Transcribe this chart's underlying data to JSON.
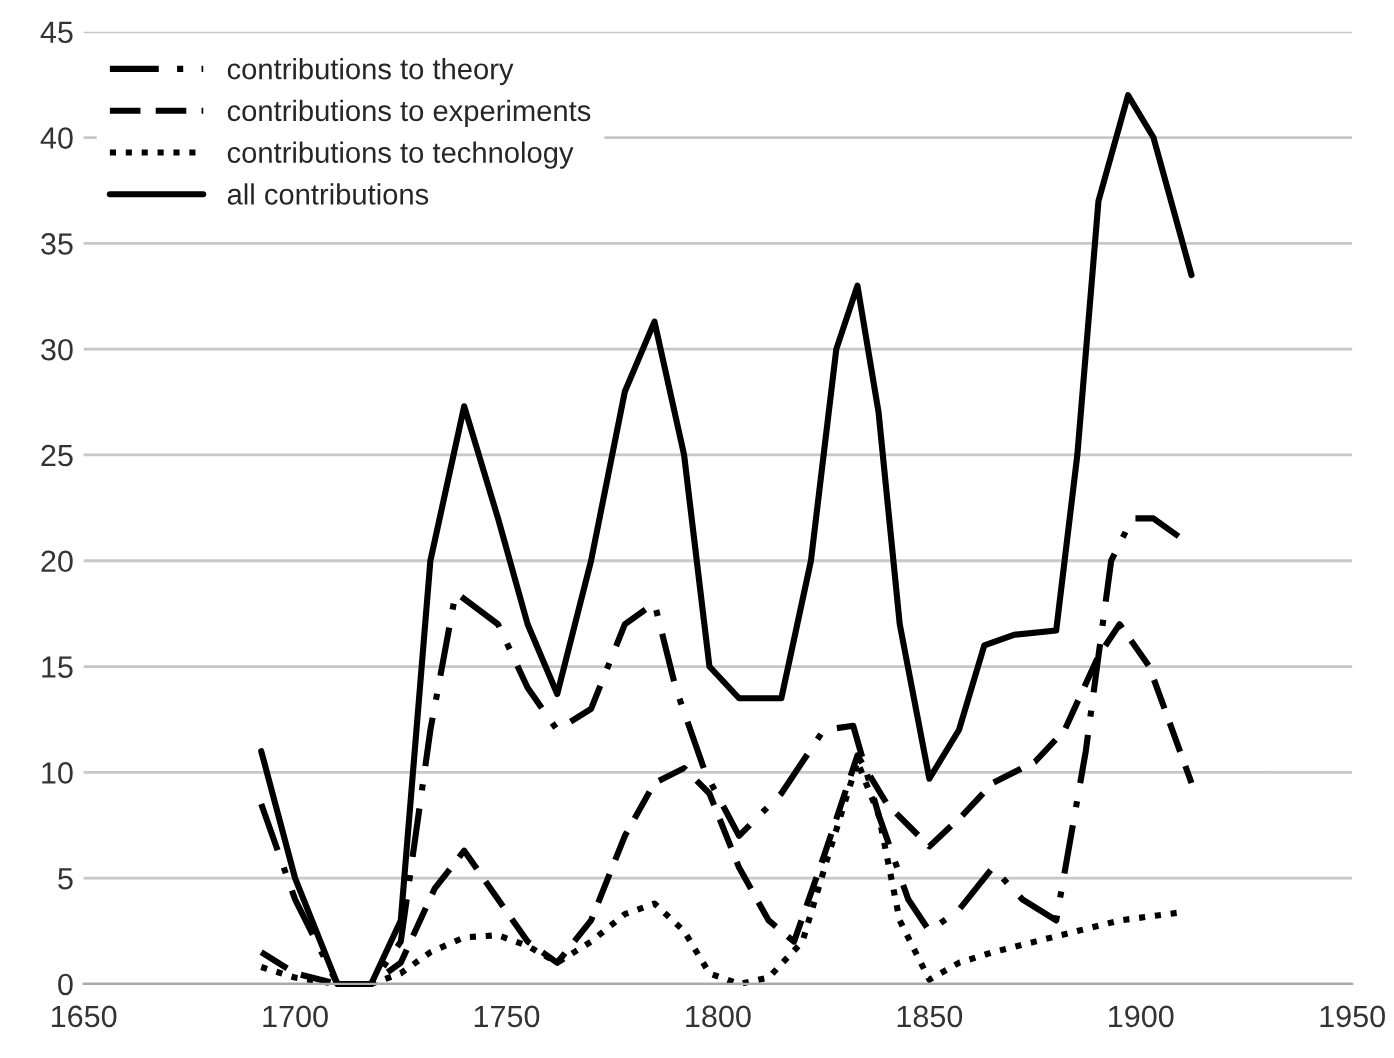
{
  "chart_data": {
    "type": "line",
    "xlim": [
      1650,
      1950
    ],
    "xticks": [
      1650,
      1700,
      1750,
      1800,
      1850,
      1900,
      1950
    ],
    "ylim": [
      0,
      45
    ],
    "yticks": [
      0,
      5,
      10,
      15,
      20,
      25,
      30,
      35,
      40,
      45
    ],
    "grid": "y",
    "legend": "top left",
    "marker": "none",
    "series": [
      {
        "name": "contributions to theory",
        "color": "#000000",
        "line_style": "dashdot",
        "x": [
          1692,
          1700,
          1710,
          1718,
          1725,
          1732,
          1738,
          1748,
          1755,
          1762,
          1770,
          1778,
          1785,
          1790,
          1797,
          1805,
          1815,
          1825,
          1832,
          1838,
          1845,
          1850,
          1857,
          1865,
          1872,
          1880,
          1887,
          1893,
          1898,
          1903,
          1910
        ],
        "values": [
          8.5,
          4,
          0,
          0,
          2,
          12,
          18.5,
          17,
          14,
          12,
          13,
          17,
          18,
          14,
          10,
          7,
          9,
          12,
          12.2,
          8,
          4,
          2.5,
          3.5,
          5.5,
          4,
          3,
          11,
          20,
          22,
          22,
          21
        ]
      },
      {
        "name": "contributions to experiments",
        "color": "#000000",
        "line_style": "dashed",
        "x": [
          1692,
          1700,
          1710,
          1718,
          1725,
          1733,
          1740,
          1748,
          1755,
          1762,
          1770,
          1778,
          1785,
          1792,
          1798,
          1805,
          1812,
          1818,
          1825,
          1833,
          1840,
          1850,
          1858,
          1865,
          1875,
          1882,
          1890,
          1895,
          1902,
          1912
        ],
        "values": [
          1.5,
          0.5,
          0,
          0,
          1,
          4.5,
          6.3,
          4,
          2,
          1,
          3,
          7,
          9.5,
          10.2,
          9,
          5.5,
          3,
          2,
          6,
          10.8,
          8.5,
          6.5,
          8,
          9.5,
          10.5,
          12,
          15.5,
          17,
          15,
          9.5
        ]
      },
      {
        "name": "contributions to technology",
        "color": "#000000",
        "line_style": "dotted",
        "x": [
          1692,
          1700,
          1710,
          1718,
          1725,
          1732,
          1740,
          1748,
          1755,
          1762,
          1770,
          1778,
          1785,
          1792,
          1798,
          1805,
          1812,
          1820,
          1826,
          1833,
          1838,
          1843,
          1850,
          1857,
          1865,
          1875,
          1885,
          1895,
          1910
        ],
        "values": [
          0.8,
          0.3,
          0,
          0,
          0.5,
          1.5,
          2.2,
          2.3,
          1.8,
          1,
          2,
          3.3,
          3.8,
          2.5,
          0.5,
          0,
          0.3,
          2,
          6,
          10.5,
          8,
          3,
          0.2,
          1,
          1.5,
          2,
          2.5,
          3,
          3.4
        ]
      },
      {
        "name": "all contributions",
        "color": "#000000",
        "line_style": "solid",
        "x": [
          1692,
          1700,
          1710,
          1718,
          1725,
          1732,
          1740,
          1748,
          1755,
          1762,
          1770,
          1778,
          1785,
          1792,
          1798,
          1805,
          1815,
          1822,
          1828,
          1833,
          1838,
          1843,
          1850,
          1857,
          1863,
          1870,
          1880,
          1885,
          1890,
          1897,
          1903,
          1912
        ],
        "values": [
          11,
          5,
          0,
          0,
          3,
          20,
          27.3,
          22,
          17,
          13.7,
          20,
          28,
          31.3,
          25,
          15,
          13.5,
          13.5,
          20,
          30,
          33,
          27,
          17,
          9.7,
          12,
          16,
          16.5,
          16.7,
          25,
          37,
          42,
          40,
          33.5
        ]
      }
    ]
  }
}
